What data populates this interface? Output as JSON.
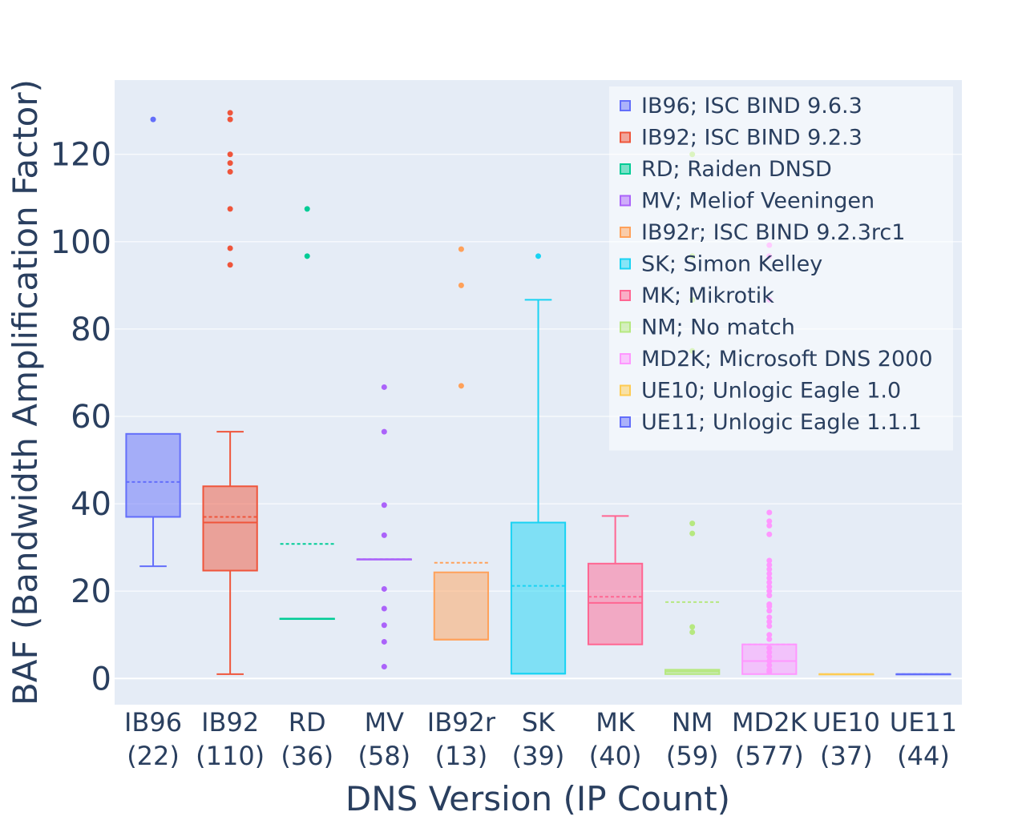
{
  "chart_data": {
    "type": "box",
    "title": "",
    "xlabel": "DNS Version (IP Count)",
    "ylabel": "BAF (Bandwidth Amplification Factor)",
    "ylim": [
      -6,
      137
    ],
    "yticks": [
      0,
      20,
      40,
      60,
      80,
      100,
      120
    ],
    "grid": true,
    "legend_position": "top-right",
    "series": [
      {
        "short": "IB96",
        "count": "(22)",
        "name": "IB96; ISC BIND 9.6.3",
        "color": "#636efa",
        "q1": 37,
        "median": 37,
        "q3": 56,
        "lower": 25.7,
        "upper": 37,
        "mean": 45,
        "outliers": [
          128
        ]
      },
      {
        "short": "IB92",
        "count": "(110)",
        "name": "IB92; ISC BIND 9.2.3",
        "color": "#ef553b",
        "q1": 24.7,
        "median": 35.7,
        "q3": 44,
        "lower": 1,
        "upper": 56.5,
        "mean": 37,
        "outliers": [
          129.5,
          128,
          120,
          118,
          116,
          107.5,
          98.5,
          94.7
        ]
      },
      {
        "short": "RD",
        "count": "(36)",
        "name": "RD; Raiden DNSD",
        "color": "#00cc96",
        "q1": 13.7,
        "median": 13.7,
        "q3": 13.7,
        "lower": 13.7,
        "upper": 13.7,
        "mean": 30.8,
        "outliers": [
          107.5,
          96.7
        ]
      },
      {
        "short": "MV",
        "count": "(58)",
        "name": "MV; Meliof Veeningen",
        "color": "#ab63fa",
        "q1": 27.3,
        "median": 27.3,
        "q3": 27.3,
        "lower": 27.3,
        "upper": 27.3,
        "mean": 27.3,
        "outliers": [
          66.7,
          56.5,
          39.7,
          32.8,
          20.5,
          16,
          12.2,
          8.4,
          2.7
        ]
      },
      {
        "short": "IB92r",
        "count": "(13)",
        "name": "IB92r; ISC BIND 9.2.3rc1",
        "color": "#ffa15a",
        "q1": 8.9,
        "median": 8.9,
        "q3": 24.3,
        "lower": 8.9,
        "upper": 24.3,
        "mean": 26.5,
        "outliers": [
          98.3,
          90,
          67
        ]
      },
      {
        "short": "SK",
        "count": "(39)",
        "name": "SK; Simon Kelley",
        "color": "#19d3f3",
        "q1": 1.1,
        "median": 1.1,
        "q3": 35.7,
        "lower": 1.1,
        "upper": 86.7,
        "mean": 21.2,
        "outliers": [
          96.7
        ]
      },
      {
        "short": "MK",
        "count": "(40)",
        "name": "MK; Mikrotik",
        "color": "#ff6692",
        "q1": 7.8,
        "median": 17.3,
        "q3": 26.3,
        "lower": 7.8,
        "upper": 37.2,
        "mean": 18.7,
        "outliers": []
      },
      {
        "short": "NM",
        "count": "(59)",
        "name": "NM; No match",
        "color": "#b6e880",
        "q1": 1,
        "median": 1.6,
        "q3": 2,
        "lower": 1,
        "upper": 2,
        "mean": 17.5,
        "outliers": [
          120,
          96.7,
          86.7,
          75,
          35.5,
          33.2,
          11.8,
          10.6
        ]
      },
      {
        "short": "MD2K",
        "count": "(577)",
        "name": "MD2K; Microsoft DNS 2000",
        "color": "#ff97ff",
        "q1": 1,
        "median": 4,
        "q3": 7.8,
        "lower": 1,
        "upper": 7.8,
        "mean": 7.8,
        "outliers": [
          99.2,
          96.7,
          86.7,
          38,
          36,
          35,
          33,
          27,
          26,
          25,
          24,
          23,
          22,
          21,
          20,
          19,
          17,
          16.5,
          15.5,
          14,
          13,
          12,
          10,
          9,
          7,
          6,
          5,
          4,
          3,
          2,
          1.5
        ]
      },
      {
        "short": "UE10",
        "count": "(37)",
        "name": "UE10; Unlogic Eagle 1.0",
        "color": "#fecb52",
        "q1": 1,
        "median": 1,
        "q3": 1,
        "lower": 1,
        "upper": 1,
        "mean": 1,
        "outliers": []
      },
      {
        "short": "UE11",
        "count": "(44)",
        "name": "UE11; Unlogic Eagle 1.1.1",
        "color": "#636efa",
        "q1": 1,
        "median": 1,
        "q3": 1,
        "lower": 1,
        "upper": 1,
        "mean": 1,
        "outliers": []
      }
    ]
  }
}
